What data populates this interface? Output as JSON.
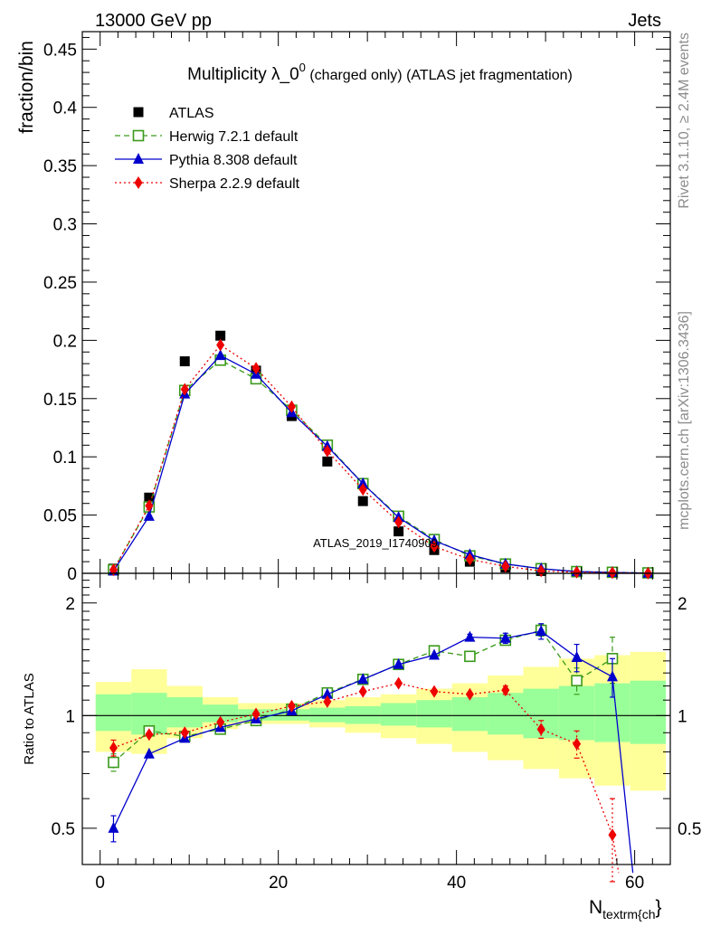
{
  "header": {
    "left": "13000 GeV pp",
    "right": "Jets"
  },
  "side_labels": {
    "rivet": "Rivet 3.1.10, ≥ 2.4M events",
    "mcplots": "mcplots.cern.ch [arXiv:1306.3436]"
  },
  "watermark": "ATLAS_2019_I1740909",
  "colors": {
    "atlas": "#000000",
    "herwig": "#3a9a1a",
    "pythia": "#0000cc",
    "sherpa": "#ee0000",
    "band_yellow": "#ffff99",
    "band_green": "#99ff99"
  },
  "chart_data": [
    {
      "type": "scatter",
      "title_main": "Multiplicity λ_0",
      "title_sup": "0",
      "title_rest": " (charged only) (ATLAS jet fragmentation)",
      "ylabel": "fraction/bin",
      "xlim": [
        -2,
        64
      ],
      "ylim": [
        0,
        0.465
      ],
      "yticks": [
        "0",
        "0.05",
        "0.1",
        "0.15",
        "0.2",
        "0.25",
        "0.3",
        "0.35",
        "0.4",
        "0.45"
      ],
      "ytick_values": [
        0,
        0.05,
        0.1,
        0.15,
        0.2,
        0.25,
        0.3,
        0.35,
        0.4,
        0.45
      ],
      "legend_position": "top-left",
      "x": [
        1.5,
        5.5,
        9.5,
        13.5,
        17.5,
        21.5,
        25.5,
        29.5,
        33.5,
        37.5,
        41.5,
        45.5,
        49.5,
        53.5,
        57.5,
        61.5
      ],
      "series": [
        {
          "name": "ATLAS",
          "key": "atlas",
          "marker": "square",
          "line": "none",
          "values": [
            0.004,
            0.065,
            0.182,
            0.204,
            0.174,
            0.135,
            0.096,
            0.062,
            0.036,
            0.02,
            0.01,
            0.005,
            0.002,
            0.001,
            0.0006,
            0.0004
          ]
        },
        {
          "name": "Herwig 7.2.1 default",
          "key": "herwig",
          "marker": "open-square",
          "line": "dashed",
          "values": [
            0.003,
            0.057,
            0.157,
            0.183,
            0.167,
            0.14,
            0.11,
            0.077,
            0.049,
            0.029,
            0.015,
            0.008,
            0.004,
            0.0015,
            0.0009,
            0.0004
          ]
        },
        {
          "name": "Pythia 8.308 default",
          "key": "pythia",
          "marker": "triangle",
          "line": "solid",
          "values": [
            0.002,
            0.049,
            0.154,
            0.187,
            0.171,
            0.138,
            0.109,
            0.077,
            0.048,
            0.028,
            0.016,
            0.008,
            0.004,
            0.0015,
            0.0008,
            0.0002
          ]
        },
        {
          "name": "Sherpa 2.2.9 default",
          "key": "sherpa",
          "marker": "diamond",
          "line": "dotted",
          "values": [
            0.003,
            0.058,
            0.158,
            0.196,
            0.176,
            0.143,
            0.105,
            0.072,
            0.044,
            0.023,
            0.012,
            0.006,
            0.002,
            0.001,
            0.0005,
            0.0001
          ]
        }
      ]
    },
    {
      "type": "line",
      "ylabel": "Ratio to ATLAS",
      "xlabel_main": "N",
      "xlabel_sub": "textrm{ch",
      "xlabel_close": "}",
      "xlim": [
        -2,
        64
      ],
      "ylog": true,
      "ylim": [
        0.4,
        2.4
      ],
      "yticks_left": [
        "0.5",
        "1",
        "2"
      ],
      "ytick_values": [
        0.5,
        1,
        2
      ],
      "xticks": [
        "0",
        "20",
        "40",
        "60"
      ],
      "xtick_values": [
        0,
        20,
        40,
        60
      ],
      "reference_line": 1,
      "bins": [
        [
          -0.5,
          3.5
        ],
        [
          3.5,
          7.5
        ],
        [
          7.5,
          11.5
        ],
        [
          11.5,
          15.5
        ],
        [
          15.5,
          19.5
        ],
        [
          19.5,
          23.5
        ],
        [
          23.5,
          27.5
        ],
        [
          27.5,
          31.5
        ],
        [
          31.5,
          35.5
        ],
        [
          35.5,
          39.5
        ],
        [
          39.5,
          43.5
        ],
        [
          43.5,
          47.5
        ],
        [
          47.5,
          51.5
        ],
        [
          51.5,
          55.5
        ],
        [
          55.5,
          59.5
        ],
        [
          59.5,
          63.5
        ]
      ],
      "band_outer": [
        [
          0.8,
          1.23
        ],
        [
          0.79,
          1.33
        ],
        [
          0.87,
          1.2
        ],
        [
          0.92,
          1.12
        ],
        [
          0.95,
          1.08
        ],
        [
          0.95,
          1.08
        ],
        [
          0.93,
          1.1
        ],
        [
          0.9,
          1.12
        ],
        [
          0.87,
          1.14
        ],
        [
          0.84,
          1.18
        ],
        [
          0.8,
          1.22
        ],
        [
          0.76,
          1.28
        ],
        [
          0.72,
          1.35
        ],
        [
          0.68,
          1.42
        ],
        [
          0.65,
          1.45
        ],
        [
          0.63,
          1.48
        ]
      ],
      "band_inner": [
        [
          0.91,
          1.14
        ],
        [
          0.89,
          1.15
        ],
        [
          0.93,
          1.12
        ],
        [
          0.96,
          1.07
        ],
        [
          0.97,
          1.04
        ],
        [
          0.97,
          1.04
        ],
        [
          0.96,
          1.05
        ],
        [
          0.95,
          1.06
        ],
        [
          0.94,
          1.08
        ],
        [
          0.93,
          1.1
        ],
        [
          0.91,
          1.12
        ],
        [
          0.89,
          1.15
        ],
        [
          0.87,
          1.18
        ],
        [
          0.86,
          1.2
        ],
        [
          0.85,
          1.22
        ],
        [
          0.84,
          1.24
        ]
      ],
      "series": [
        {
          "name": "Herwig 7.2.1 default",
          "key": "herwig",
          "marker": "open-square",
          "line": "dashed",
          "x": [
            1.5,
            5.5,
            9.5,
            13.5,
            17.5,
            21.5,
            25.5,
            29.5,
            33.5,
            37.5,
            41.5,
            45.5,
            49.5,
            53.5,
            57.5
          ],
          "values": [
            0.75,
            0.91,
            0.88,
            0.92,
            0.97,
            1.04,
            1.15,
            1.25,
            1.37,
            1.49,
            1.44,
            1.59,
            1.69,
            1.24,
            1.42
          ],
          "errors": [
            0.04,
            0,
            0,
            0,
            0,
            0,
            0,
            0,
            0,
            0,
            0,
            0.04,
            0.06,
            0.1,
            0.2
          ]
        },
        {
          "name": "Pythia 8.308 default",
          "key": "pythia",
          "marker": "triangle",
          "line": "solid",
          "x": [
            1.5,
            5.5,
            9.5,
            13.5,
            17.5,
            21.5,
            25.5,
            29.5,
            33.5,
            37.5,
            41.5,
            45.5,
            49.5,
            53.5,
            57.5,
            59.8
          ],
          "values": [
            0.5,
            0.79,
            0.87,
            0.93,
            0.98,
            1.03,
            1.14,
            1.25,
            1.37,
            1.45,
            1.62,
            1.61,
            1.68,
            1.43,
            1.27,
            0.38
          ],
          "errors": [
            0.04,
            0,
            0,
            0,
            0,
            0,
            0,
            0,
            0,
            0,
            0.03,
            0.05,
            0.08,
            0.12,
            0.15,
            0
          ]
        },
        {
          "name": "Sherpa 2.2.9 default",
          "key": "sherpa",
          "marker": "diamond",
          "line": "dotted",
          "x": [
            1.5,
            5.5,
            9.5,
            13.5,
            17.5,
            21.5,
            25.5,
            29.5,
            33.5,
            37.5,
            41.5,
            45.5,
            49.5,
            53.5,
            57.5,
            58.2
          ],
          "values": [
            0.82,
            0.89,
            0.9,
            0.96,
            1.01,
            1.06,
            1.09,
            1.16,
            1.22,
            1.16,
            1.14,
            1.17,
            0.92,
            0.84,
            0.48,
            0.38
          ],
          "errors": [
            0.04,
            0,
            0,
            0,
            0,
            0,
            0,
            0,
            0,
            0,
            0,
            0.03,
            0.05,
            0.07,
            0.12,
            0
          ]
        }
      ]
    }
  ]
}
